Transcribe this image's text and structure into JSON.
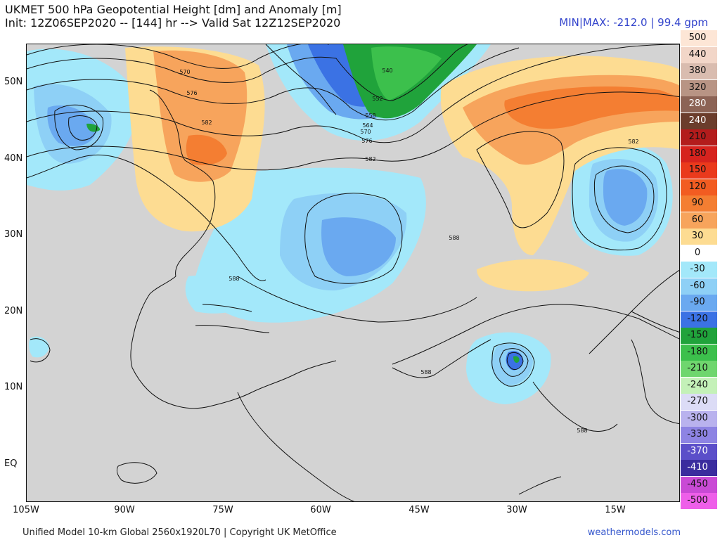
{
  "header": {
    "title_line1": "UKMET 500 hPa Geopotential Height [dm] and Anomaly [m]",
    "title_line2": "Init: 12Z06SEP2020 -- [144] hr --> Valid Sat 12Z12SEP2020",
    "minmax": "MIN|MAX: -212.0 | 99.4 gpm"
  },
  "map": {
    "lat_labels": [
      "50N",
      "40N",
      "30N",
      "20N",
      "10N",
      "EQ"
    ],
    "lon_labels": [
      "105W",
      "90W",
      "75W",
      "60W",
      "45W",
      "30W",
      "15W"
    ],
    "contour_labels": [
      "540",
      "546",
      "552",
      "558",
      "564",
      "570",
      "576",
      "582",
      "588",
      "576",
      "582",
      "570",
      "588",
      "588",
      "582",
      "588"
    ]
  },
  "legend": {
    "values": [
      "500",
      "440",
      "380",
      "320",
      "280",
      "240",
      "210",
      "180",
      "150",
      "120",
      "90",
      "60",
      "30",
      "0",
      "-30",
      "-60",
      "-90",
      "-120",
      "-150",
      "-180",
      "-210",
      "-240",
      "-270",
      "-300",
      "-330",
      "-370",
      "-410",
      "-450",
      "-500"
    ],
    "colors": [
      "#fde6d6",
      "#f2d6c8",
      "#d9bcaf",
      "#b89484",
      "#8c6355",
      "#6b3d2c",
      "#b31c1c",
      "#d6231e",
      "#ea3a1c",
      "#f25c21",
      "#f47e32",
      "#f7a45c",
      "#fddc92",
      "#ffffff",
      "#a3e8fa",
      "#8ed0f6",
      "#6aa9f0",
      "#3b72e4",
      "#20a33b",
      "#3cc04c",
      "#6fd66e",
      "#c4f1b8",
      "#dcdcf6",
      "#b9b2ee",
      "#8d83e3",
      "#5b4ec9",
      "#3a2c9e",
      "#c94ad5",
      "#ee5fe9"
    ],
    "light_text_indices": [
      4,
      5,
      25,
      26
    ]
  },
  "footer": {
    "left": "Unified Model 10-km Global 2560x1920L70 | Copyright UK MetOffice",
    "right": "weathermodels.com"
  }
}
